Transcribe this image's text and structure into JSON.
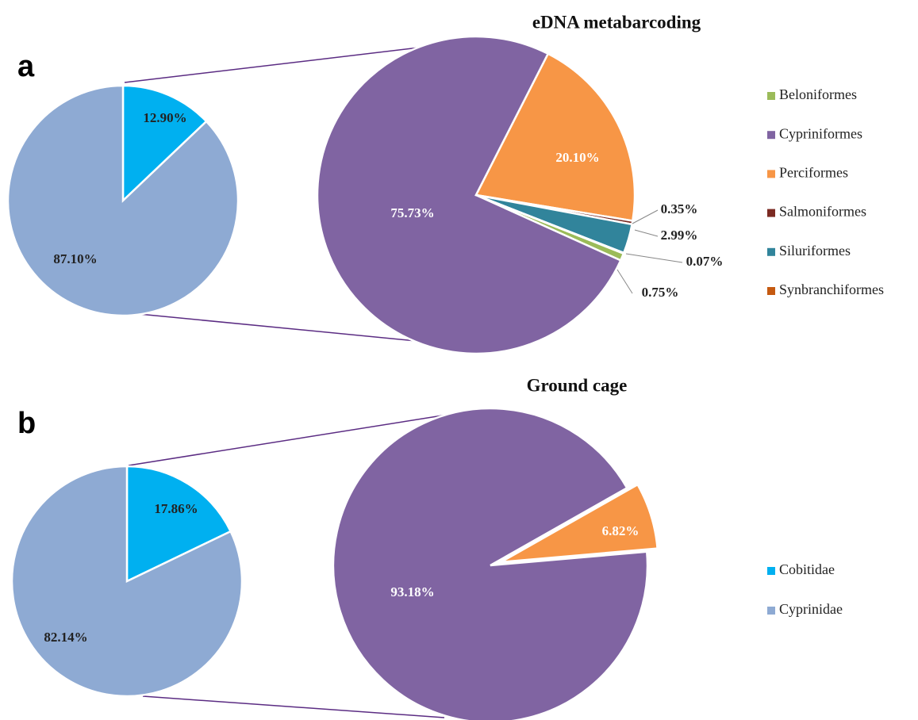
{
  "chart_data": [
    {
      "type": "pie",
      "panel_label": "a",
      "values": [
        12.9,
        87.1
      ],
      "value_labels": [
        "12.90%",
        "87.10%"
      ],
      "colors": [
        "#00b0f0",
        "#8eaad3"
      ]
    },
    {
      "type": "pie",
      "title": "eDNA metabarcoding",
      "legend": true,
      "categories": [
        "Beloniformes",
        "Cypriniformes",
        "Perciformes",
        "Salmoniformes",
        "Siluriformes",
        "Synbranchiformes"
      ],
      "values": [
        0.75,
        75.73,
        20.1,
        0.35,
        2.99,
        0.07
      ],
      "value_labels": [
        "0.75%",
        "75.73%",
        "20.10%",
        "0.35%",
        "2.99%",
        "0.07%"
      ],
      "colors": [
        "#9bbb59",
        "#8064a2",
        "#f79646",
        "#7b2a22",
        "#31849b",
        "#c55a11"
      ]
    },
    {
      "type": "pie",
      "panel_label": "b",
      "legend": true,
      "categories": [
        "Cobitidae",
        "Cyprinidae"
      ],
      "values": [
        17.86,
        82.14
      ],
      "value_labels": [
        "17.86%",
        "82.14%"
      ],
      "colors": [
        "#00b0f0",
        "#8eaad3"
      ]
    },
    {
      "type": "pie",
      "title": "Ground cage",
      "values": [
        93.18,
        6.82
      ],
      "value_labels": [
        "93.18%",
        "6.82%"
      ],
      "colors": [
        "#8064a2",
        "#f79646"
      ]
    }
  ]
}
